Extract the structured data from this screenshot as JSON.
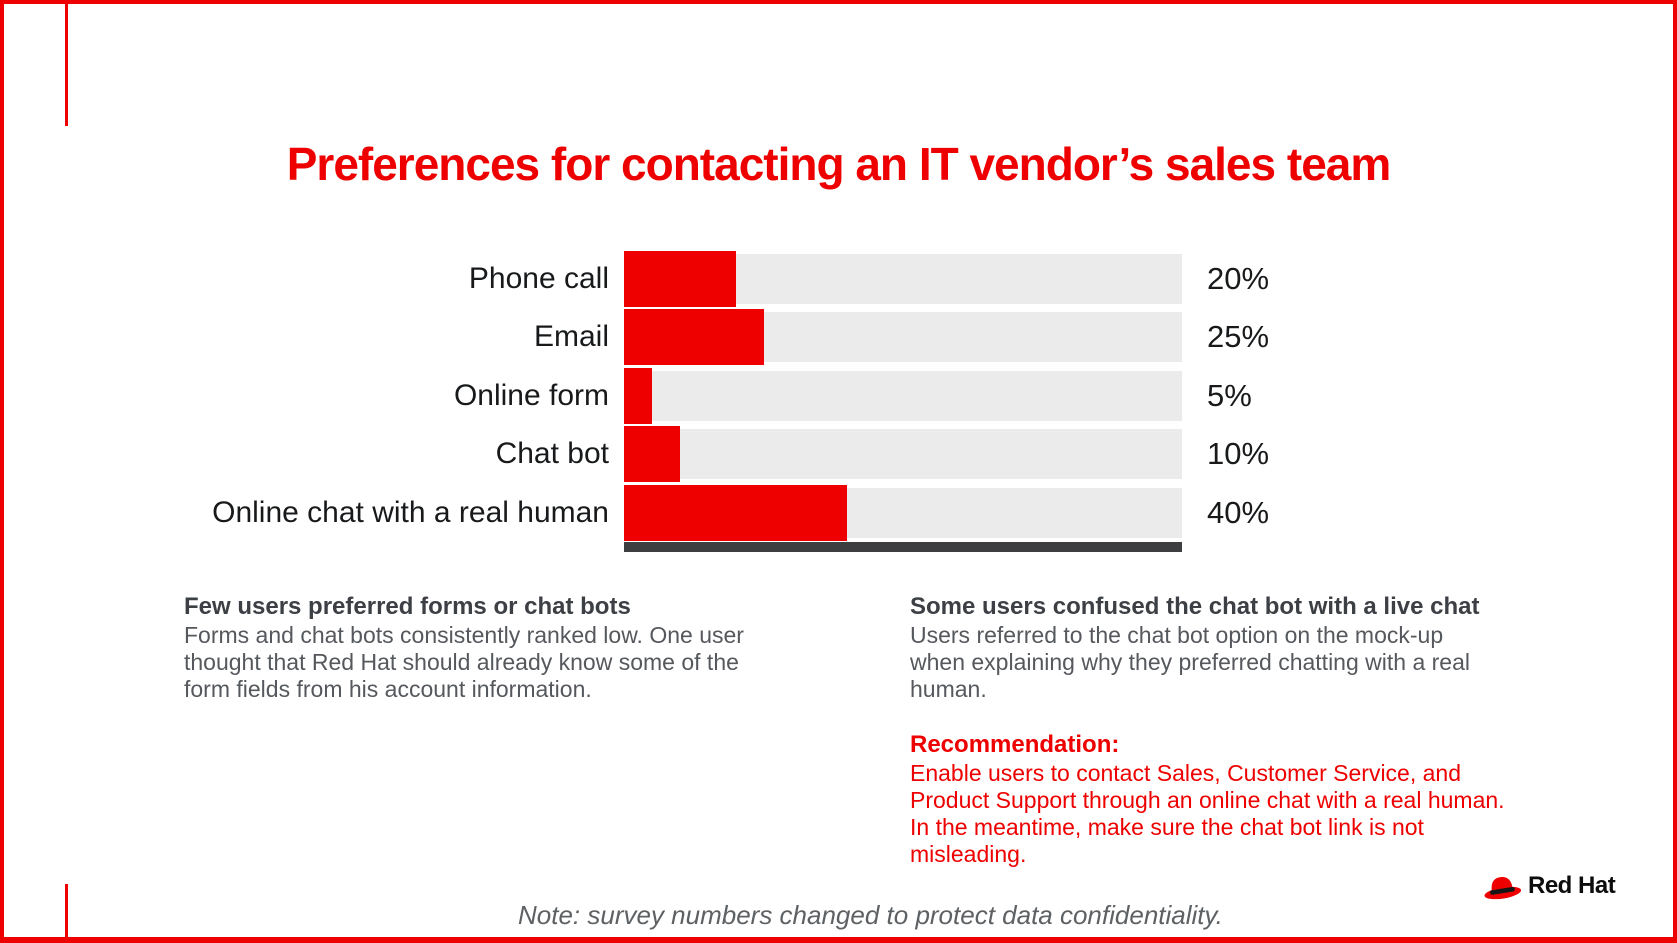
{
  "title": "Preferences for contacting an IT vendor’s sales team",
  "colors": {
    "red": "#EE0000",
    "track": "#EBEBEB",
    "axis": "#3C3E40",
    "heading": "#3C3F44",
    "body": "#55585C",
    "label": "#17191B",
    "note": "#5E6164"
  },
  "chart_data": {
    "type": "bar",
    "orientation": "horizontal",
    "title": "Preferences for contacting an IT vendor’s sales team",
    "categories": [
      "Phone call",
      "Email",
      "Online form",
      "Chat bot",
      "Online chat with a real human"
    ],
    "values": [
      20,
      25,
      5,
      10,
      40
    ],
    "value_labels": [
      "20%",
      "25%",
      "5%",
      "10%",
      "40%"
    ],
    "xlim": [
      0,
      100
    ],
    "grid": false,
    "legend": false,
    "bar_color": "#EE0000",
    "track_color": "#EBEBEB"
  },
  "insights": {
    "left": {
      "heading": "Few users preferred forms or chat bots",
      "lines": [
        "Forms and chat bots consistently ranked low. One user",
        "thought that Red Hat should already know some of the",
        "form fields from his account information."
      ]
    },
    "right": {
      "heading": "Some users confused the chat bot with a live chat",
      "lines": [
        "Users referred to the chat bot option on the mock-up",
        "when explaining why they preferred chatting with a real",
        "human."
      ]
    }
  },
  "recommendation": {
    "heading": "Recommendation:",
    "lines": [
      "Enable users to contact Sales, Customer Service, and",
      "Product Support through an online chat with a real human.",
      "In the meantime, make sure the chat bot link is not",
      "misleading."
    ]
  },
  "note": "Note: survey numbers changed to protect data confidentiality.",
  "logo": {
    "brand": "Red Hat"
  }
}
